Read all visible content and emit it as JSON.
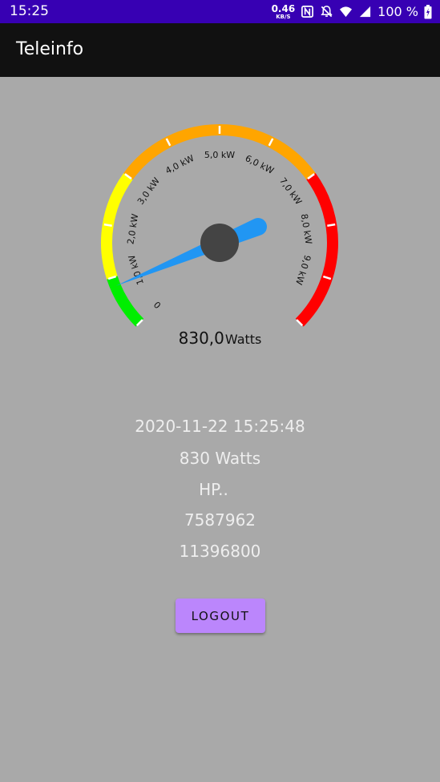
{
  "status_bar": {
    "time": "15:25",
    "net_speed_value": "0.46",
    "net_speed_unit": "KB/S",
    "battery_percent": "100 %"
  },
  "app_bar": {
    "title": "Teleinfo"
  },
  "gauge": {
    "min": 0,
    "max": 10,
    "current_kw": 0.83,
    "tick_labels": [
      "0",
      "1,0 kW",
      "2,0 kW",
      "3,0 kW",
      "4,0 kW",
      "5,0 kW",
      "6,0 kW",
      "7,0 kW",
      "8,0 kW",
      "9,0 kW"
    ],
    "zones": [
      {
        "from": 0,
        "to": 1,
        "color": "#00ee00"
      },
      {
        "from": 1,
        "to": 3,
        "color": "#ffff00"
      },
      {
        "from": 3,
        "to": 7,
        "color": "#ffa500"
      },
      {
        "from": 7,
        "to": 10,
        "color": "#ff0000"
      }
    ],
    "needle_color": "#2196f3",
    "hub_color": "#444444",
    "value_text": "830,0",
    "unit_text": "Watts"
  },
  "info": {
    "timestamp": "2020-11-22 15:25:48",
    "power": "830 Watts",
    "tariff": "HP..",
    "index_1": "7587962",
    "index_2": "11396800"
  },
  "logout_label": "LOGOUT"
}
